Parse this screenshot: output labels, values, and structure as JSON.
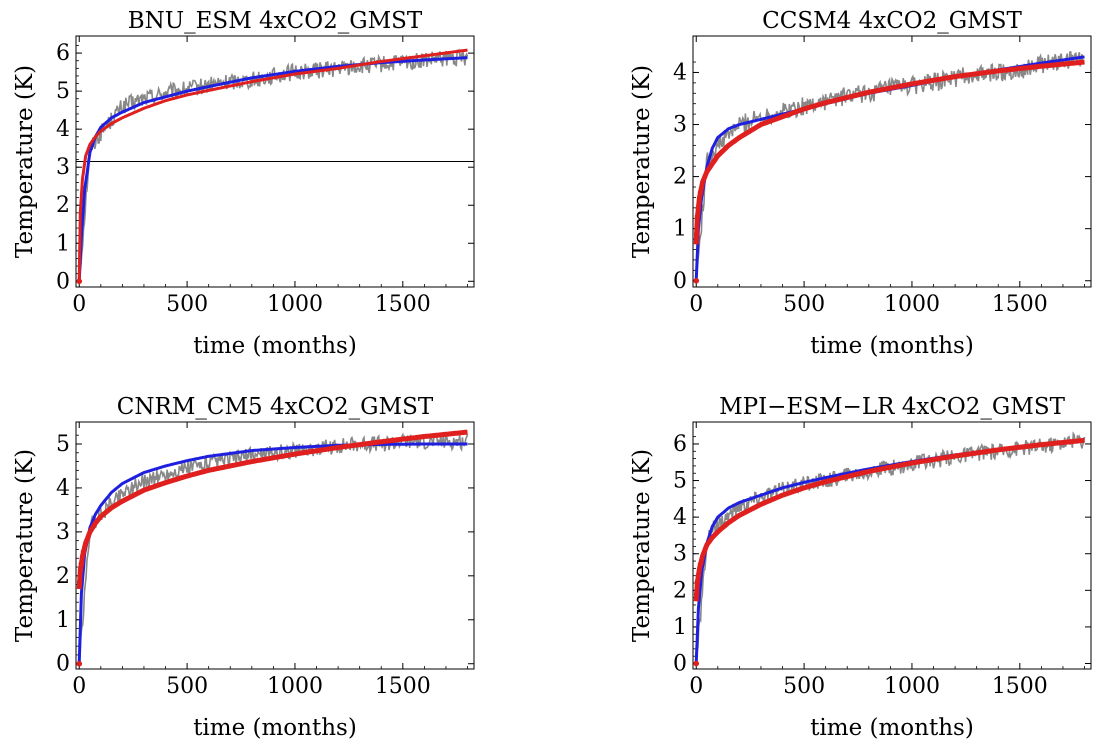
{
  "chart_data": [
    {
      "type": "line",
      "title": "BNU_ESM 4xCO2_GMST",
      "xlabel": "time (months)",
      "ylabel": "Temperature (K)",
      "xlim": [
        -15,
        1830
      ],
      "ylim": [
        -0.15,
        6.45
      ],
      "xticks": [
        0,
        500,
        1000,
        1500
      ],
      "yticks": [
        0,
        1,
        2,
        3,
        4,
        5,
        6
      ],
      "hline": 3.15,
      "series": [
        {
          "color": "#888888",
          "style": "noisy",
          "x": [
            0,
            50,
            100,
            200,
            300,
            400,
            500,
            600,
            700,
            800,
            900,
            1000,
            1100,
            1200,
            1300,
            1400,
            1500,
            1600,
            1700,
            1800
          ],
          "values": [
            0,
            3.5,
            3.9,
            4.6,
            4.8,
            4.95,
            5.05,
            5.15,
            5.25,
            5.3,
            5.4,
            5.5,
            5.55,
            5.6,
            5.65,
            5.7,
            5.75,
            5.8,
            5.85,
            5.9
          ],
          "noise": 0.22
        },
        {
          "color": "#1f1fe0",
          "style": "line",
          "x": [
            0,
            10,
            25,
            50,
            75,
            100,
            150,
            200,
            300,
            400,
            500,
            600,
            800,
            1000,
            1200,
            1400,
            1600,
            1800
          ],
          "values": [
            0,
            1.2,
            2.4,
            3.4,
            3.8,
            4.05,
            4.3,
            4.45,
            4.7,
            4.85,
            5.0,
            5.12,
            5.35,
            5.52,
            5.65,
            5.75,
            5.82,
            5.88
          ]
        },
        {
          "color": "#e01f1f",
          "style": "line",
          "x": [
            0,
            5,
            15,
            30,
            50,
            75,
            100,
            150,
            200,
            300,
            400,
            500,
            600,
            800,
            1000,
            1200,
            1400,
            1600,
            1800
          ],
          "values": [
            0,
            1.8,
            2.7,
            3.3,
            3.6,
            3.8,
            3.95,
            4.15,
            4.3,
            4.55,
            4.75,
            4.9,
            5.02,
            5.25,
            5.45,
            5.6,
            5.78,
            5.93,
            6.08
          ]
        }
      ]
    },
    {
      "type": "line",
      "title": "CCSM4 4xCO2_GMST",
      "xlabel": "time (months)",
      "ylabel": "Temperature (K)",
      "xlim": [
        -15,
        1830
      ],
      "ylim": [
        -0.12,
        4.7
      ],
      "xticks": [
        0,
        500,
        1000,
        1500
      ],
      "yticks": [
        0,
        1,
        2,
        3,
        4
      ],
      "series": [
        {
          "color": "#888888",
          "style": "noisy",
          "x": [
            0,
            50,
            100,
            200,
            300,
            400,
            500,
            600,
            700,
            800,
            900,
            1000,
            1100,
            1200,
            1300,
            1400,
            1500,
            1600,
            1700,
            1800
          ],
          "values": [
            0,
            2.3,
            2.6,
            3.0,
            3.15,
            3.25,
            3.35,
            3.45,
            3.55,
            3.6,
            3.7,
            3.75,
            3.8,
            3.9,
            3.95,
            4.0,
            4.05,
            4.15,
            4.2,
            4.3
          ],
          "noise": 0.18
        },
        {
          "color": "#1f1fe0",
          "style": "line",
          "x": [
            0,
            10,
            25,
            50,
            75,
            100,
            150,
            200,
            300,
            400,
            500,
            600,
            800,
            1000,
            1200,
            1400,
            1600,
            1800
          ],
          "values": [
            0,
            1.0,
            1.6,
            2.2,
            2.55,
            2.75,
            2.92,
            3.0,
            3.1,
            3.2,
            3.3,
            3.4,
            3.6,
            3.75,
            3.92,
            4.05,
            4.18,
            4.3
          ]
        },
        {
          "color": "#e01f1f",
          "style": "dots",
          "x": [
            0,
            5,
            15,
            30,
            50,
            75,
            100,
            150,
            200,
            300,
            400,
            500,
            600,
            800,
            1000,
            1200,
            1400,
            1600,
            1800
          ],
          "values": [
            0.7,
            1.2,
            1.6,
            1.9,
            2.1,
            2.25,
            2.4,
            2.6,
            2.75,
            3.0,
            3.15,
            3.3,
            3.42,
            3.62,
            3.78,
            3.92,
            4.03,
            4.12,
            4.2
          ]
        }
      ]
    },
    {
      "type": "line",
      "title": "CNRM_CM5 4xCO2_GMST",
      "xlabel": "time (months)",
      "ylabel": "Temperature (K)",
      "xlim": [
        -15,
        1830
      ],
      "ylim": [
        -0.12,
        5.5
      ],
      "xticks": [
        0,
        500,
        1000,
        1500
      ],
      "yticks": [
        0,
        1,
        2,
        3,
        4,
        5
      ],
      "series": [
        {
          "color": "#888888",
          "style": "noisy",
          "x": [
            0,
            50,
            100,
            200,
            300,
            400,
            500,
            600,
            700,
            800,
            900,
            1000,
            1100,
            1200,
            1300,
            1400,
            1500,
            1600,
            1700,
            1800
          ],
          "values": [
            0,
            3.1,
            3.4,
            3.9,
            4.15,
            4.3,
            4.45,
            4.55,
            4.65,
            4.75,
            4.8,
            4.85,
            4.9,
            4.95,
            5.0,
            5.0,
            5.05,
            5.05,
            5.05,
            5.05
          ],
          "noise": 0.18
        },
        {
          "color": "#1f1fe0",
          "style": "line",
          "x": [
            0,
            10,
            25,
            50,
            75,
            100,
            150,
            200,
            300,
            400,
            500,
            600,
            800,
            1000,
            1200,
            1400,
            1600,
            1800
          ],
          "values": [
            0,
            1.6,
            2.5,
            3.1,
            3.4,
            3.6,
            3.9,
            4.1,
            4.35,
            4.5,
            4.62,
            4.72,
            4.85,
            4.92,
            4.97,
            4.99,
            5.0,
            5.0
          ]
        },
        {
          "color": "#e01f1f",
          "style": "dots",
          "x": [
            0,
            5,
            15,
            30,
            50,
            75,
            100,
            150,
            200,
            300,
            400,
            500,
            600,
            800,
            1000,
            1200,
            1400,
            1600,
            1800
          ],
          "values": [
            1.7,
            2.1,
            2.45,
            2.75,
            3.0,
            3.2,
            3.35,
            3.55,
            3.7,
            3.95,
            4.12,
            4.27,
            4.4,
            4.6,
            4.77,
            4.92,
            5.05,
            5.17,
            5.27
          ]
        }
      ]
    },
    {
      "type": "line",
      "title": "MPI−ESM−LR 4xCO2_GMST",
      "xlabel": "time (months)",
      "ylabel": "Temperature (K)",
      "xlim": [
        -15,
        1830
      ],
      "ylim": [
        -0.15,
        6.6
      ],
      "xticks": [
        0,
        500,
        1000,
        1500
      ],
      "yticks": [
        0,
        1,
        2,
        3,
        4,
        5,
        6
      ],
      "series": [
        {
          "color": "#888888",
          "style": "noisy",
          "x": [
            0,
            50,
            100,
            200,
            300,
            400,
            500,
            600,
            700,
            800,
            900,
            1000,
            1100,
            1200,
            1300,
            1400,
            1500,
            1600,
            1700,
            1800
          ],
          "values": [
            0,
            3.4,
            3.8,
            4.3,
            4.55,
            4.75,
            4.9,
            5.0,
            5.15,
            5.25,
            5.35,
            5.45,
            5.55,
            5.65,
            5.75,
            5.8,
            5.9,
            5.95,
            6.05,
            6.1
          ],
          "noise": 0.22
        },
        {
          "color": "#1f1fe0",
          "style": "line",
          "x": [
            0,
            10,
            25,
            50,
            75,
            100,
            150,
            200,
            300,
            400,
            500,
            600,
            800,
            1000,
            1200,
            1400,
            1600,
            1800
          ],
          "values": [
            0,
            1.5,
            2.5,
            3.3,
            3.75,
            4.0,
            4.25,
            4.4,
            4.6,
            4.8,
            4.95,
            5.08,
            5.32,
            5.52,
            5.7,
            5.85,
            5.98,
            6.1
          ]
        },
        {
          "color": "#e01f1f",
          "style": "dots",
          "x": [
            0,
            5,
            15,
            30,
            50,
            75,
            100,
            150,
            200,
            300,
            400,
            500,
            600,
            800,
            1000,
            1200,
            1400,
            1600,
            1800
          ],
          "values": [
            1.7,
            2.2,
            2.6,
            2.95,
            3.25,
            3.45,
            3.6,
            3.85,
            4.05,
            4.35,
            4.6,
            4.8,
            4.97,
            5.25,
            5.48,
            5.67,
            5.84,
            5.98,
            6.1
          ]
        }
      ]
    }
  ]
}
